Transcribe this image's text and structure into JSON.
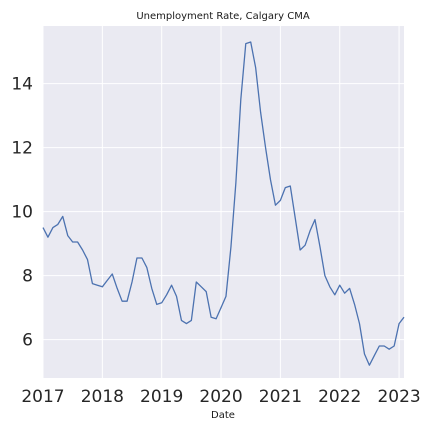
{
  "chart_data": {
    "type": "line",
    "title": "Unemployment Rate, Calgary CMA",
    "xlabel": "Date",
    "ylabel": "",
    "grid": true,
    "xlim": [
      2017.0,
      2023.083
    ],
    "ylim": [
      4.8,
      15.8
    ],
    "x_ticks": [
      2017,
      2018,
      2019,
      2020,
      2021,
      2022,
      2023
    ],
    "y_ticks": [
      6,
      8,
      10,
      12,
      14
    ],
    "series": [
      {
        "name": "",
        "color": "#4c72b0",
        "x": [
          2017.0,
          2017.083,
          2017.167,
          2017.25,
          2017.333,
          2017.417,
          2017.5,
          2017.583,
          2017.667,
          2017.75,
          2017.833,
          2017.917,
          2018.0,
          2018.083,
          2018.167,
          2018.25,
          2018.333,
          2018.417,
          2018.5,
          2018.583,
          2018.667,
          2018.75,
          2018.833,
          2018.917,
          2019.0,
          2019.083,
          2019.167,
          2019.25,
          2019.333,
          2019.417,
          2019.5,
          2019.583,
          2019.667,
          2019.75,
          2019.833,
          2019.917,
          2020.0,
          2020.083,
          2020.167,
          2020.25,
          2020.333,
          2020.417,
          2020.5,
          2020.583,
          2020.667,
          2020.75,
          2020.833,
          2020.917,
          2021.0,
          2021.083,
          2021.167,
          2021.25,
          2021.333,
          2021.417,
          2021.5,
          2021.583,
          2021.667,
          2021.75,
          2021.833,
          2021.917,
          2022.0,
          2022.083,
          2022.167,
          2022.25,
          2022.333,
          2022.417,
          2022.5,
          2022.583,
          2022.667,
          2022.75,
          2022.833,
          2022.917,
          2023.0,
          2023.083
        ],
        "y": [
          9.5,
          9.2,
          9.5,
          9.6,
          9.85,
          9.25,
          9.05,
          9.05,
          8.8,
          8.5,
          7.75,
          7.7,
          7.65,
          7.85,
          8.05,
          7.6,
          7.2,
          7.2,
          7.8,
          8.55,
          8.55,
          8.25,
          7.6,
          7.1,
          7.15,
          7.4,
          7.7,
          7.35,
          6.6,
          6.5,
          6.6,
          7.8,
          7.65,
          7.5,
          6.7,
          6.65,
          7.0,
          7.35,
          8.9,
          10.9,
          13.5,
          15.25,
          15.3,
          14.5,
          13.1,
          12.0,
          11.0,
          10.2,
          10.35,
          10.75,
          10.8,
          9.8,
          8.8,
          8.95,
          9.4,
          9.75,
          8.9,
          8.0,
          7.65,
          7.4,
          7.7,
          7.45,
          7.6,
          7.1,
          6.5,
          5.55,
          5.2,
          5.5,
          5.8,
          5.8,
          5.7,
          5.8,
          6.5,
          6.7
        ]
      }
    ]
  }
}
